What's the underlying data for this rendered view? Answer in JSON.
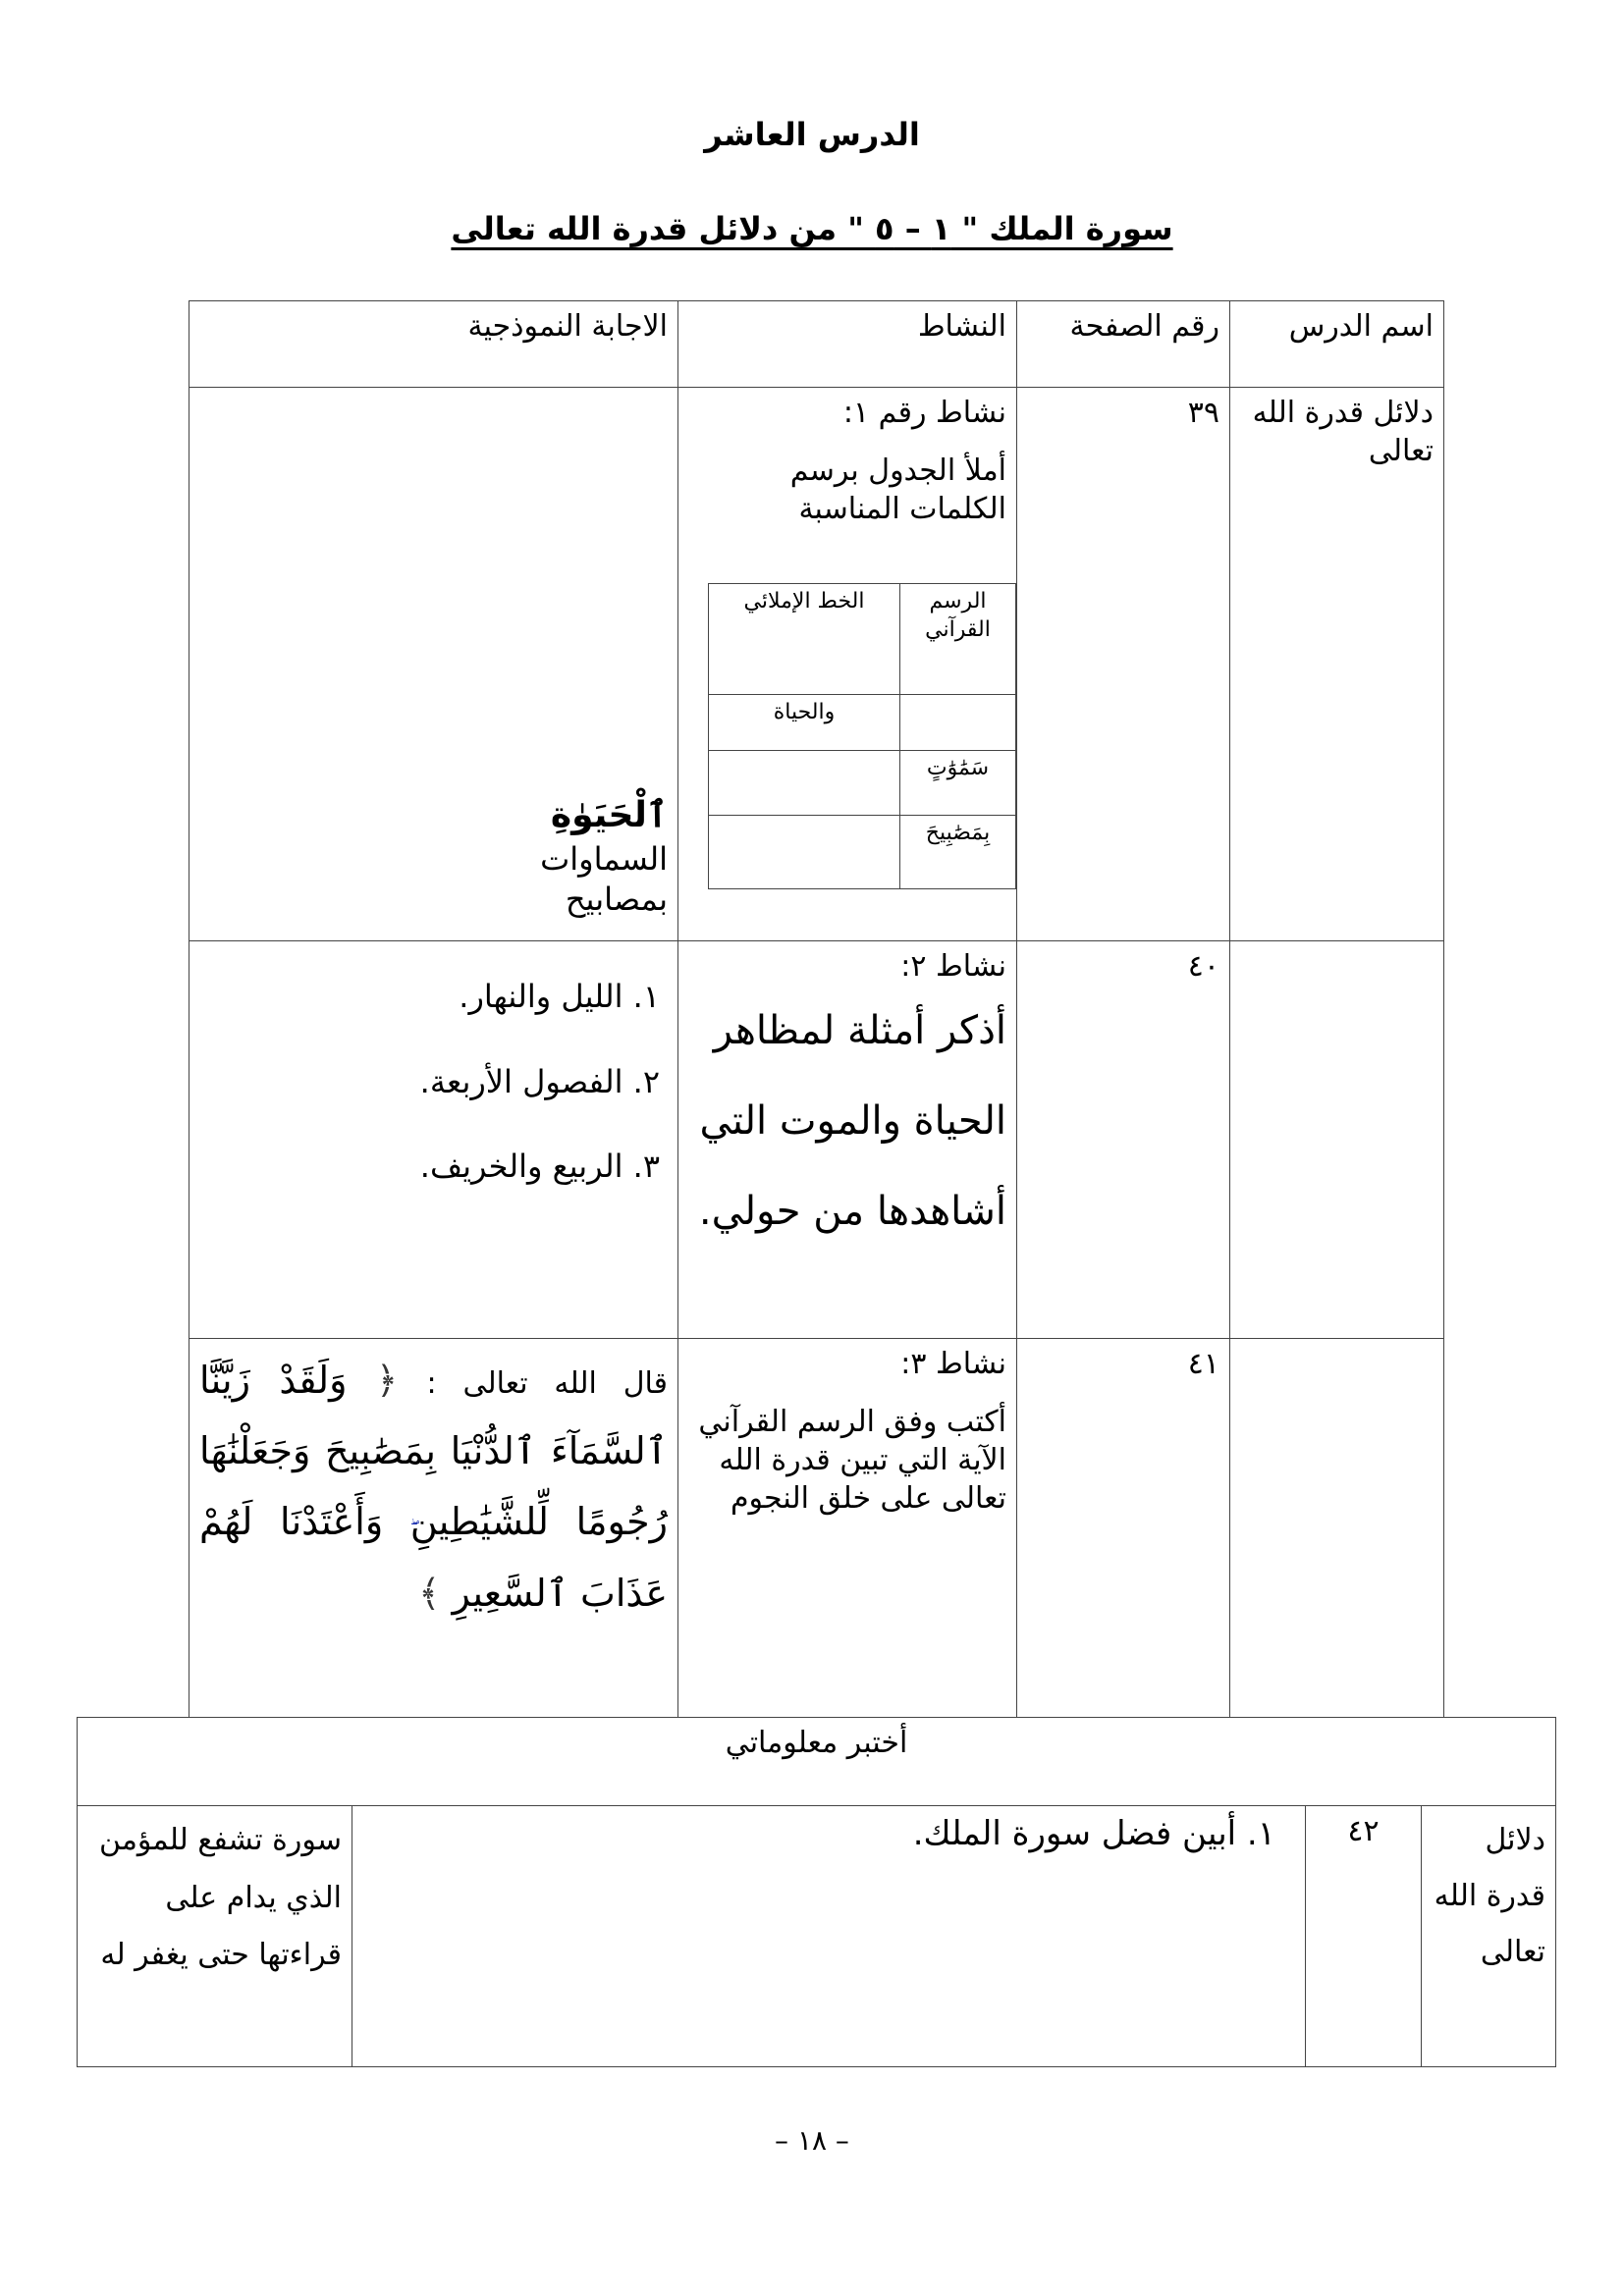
{
  "title": "الدرس العاشر",
  "subtitle": "سورة الملك \" ١ – ٥ \" من دلائل قدرة الله تعالى",
  "table": {
    "headers": [
      "اسم الدرس",
      "رقم الصفحة",
      "النشاط",
      "الاجابة النموذجية"
    ],
    "rows": [
      {
        "lesson": "دلائل قدرة الله تعالى",
        "page": "٣٩",
        "activity_title": "نشاط رقم ١:",
        "activity_text": "أملأ الجدول برسم الكلمات المناسبة",
        "inner_table": {
          "headers": [
            "الرسم القرآني",
            "الخط الإملائي"
          ],
          "rows": [
            [
              "",
              "والحياة"
            ],
            [
              "سَمَٰوَٰتٍ",
              ""
            ],
            [
              "بِمَصَٰبِيحَ",
              ""
            ]
          ]
        },
        "answers": [
          "ٱلْحَيَوٰةِ",
          "السماوات",
          "بمصابيح"
        ]
      },
      {
        "lesson": "",
        "page": "٤٠",
        "activity_title": "نشاط ٢:",
        "activity_text": "أذكر أمثلة لمظاهر الحياة والموت التي أشاهدها من حولي.",
        "answers": [
          "١. الليل والنهار.",
          "٢. الفصول الأربعة.",
          "٣. الربيع والخريف."
        ]
      },
      {
        "lesson": "",
        "page": "٤١",
        "activity_title": "نشاط ٣:",
        "activity_text": "أكتب وفق الرسم القرآني الآية التي تبين قدرة الله تعالى على خلق النجوم",
        "answer_intro": "قال الله تعالى :",
        "answer_verse": "وَلَقَدْ زَيَّنَّا ٱلسَّمَآءَ ٱلدُّنْيَا بِمَصَٰبِيحَ وَجَعَلْنَٰهَا رُجُومًا لِّلشَّيَٰطِينِ",
        "answer_mark": "ۖ",
        "answer_verse_end": "وَأَعْتَدْنَا لَهُمْ عَذَابَ ٱلسَّعِيرِ",
        "ornament_open": "﴿",
        "ornament_close": "﴾"
      }
    ]
  },
  "quiz": {
    "header": "أختبر معلوماتي",
    "lesson": "دلائل قدرة الله تعالى",
    "page": "٤٢",
    "question": "١.    أبين فضل سورة الملك.",
    "answer": "سورة تشفع للمؤمن الذي يدام على قراءتها حتى يغفر له"
  },
  "page_number": "– ١٨ –"
}
